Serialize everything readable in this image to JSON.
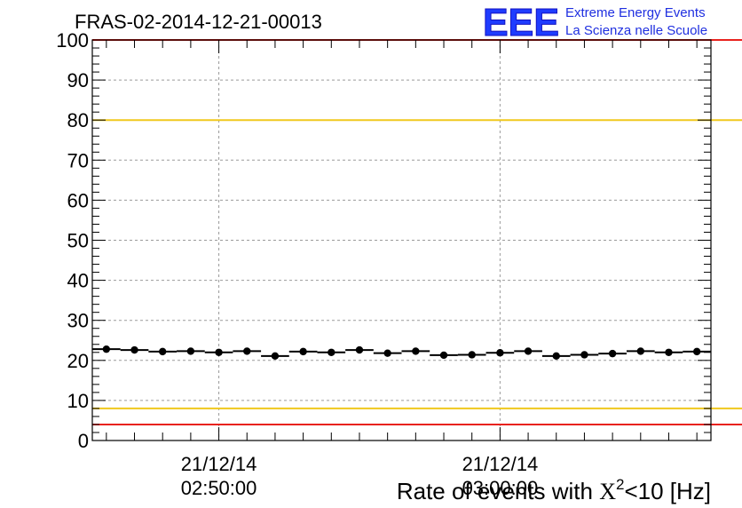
{
  "header": {
    "run_title": "FRAS-02-2014-12-21-00013",
    "logo_text": "EEE",
    "logo_line1": "Extreme Energy Events",
    "logo_line2": "La Scienza nelle Scuole"
  },
  "chart_data": {
    "type": "scatter",
    "title": "FRAS-02-2014-12-21-00013",
    "xlabel_prefix": "Rate of events with ",
    "xlabel_chi": "X",
    "xlabel_sup": "2",
    "xlabel_suffix": "<10 [Hz]",
    "ylim": [
      0,
      100
    ],
    "y_ticks": [
      "0",
      "10",
      "20",
      "30",
      "40",
      "50",
      "60",
      "70",
      "80",
      "90",
      "100"
    ],
    "x_tick_labels": [
      {
        "date": "21/12/14",
        "time": "02:50:00",
        "minute": 2.5
      },
      {
        "date": "21/12/14",
        "time": "03:00:00",
        "minute": 12.5
      }
    ],
    "x_range_minutes": [
      -2.0,
      20.0
    ],
    "bin_width_minutes": 1.0,
    "grid": true,
    "reference_lines": [
      {
        "value": 100,
        "color": "#e8221e"
      },
      {
        "value": 80,
        "color": "#f0c81e"
      },
      {
        "value": 8,
        "color": "#f0c81e"
      },
      {
        "value": 4,
        "color": "#e8221e"
      }
    ],
    "series": [
      {
        "color": "#000000",
        "x": [
          -1.5,
          -0.5,
          0.5,
          1.5,
          2.5,
          3.5,
          4.5,
          5.5,
          6.5,
          7.5,
          8.5,
          9.5,
          10.5,
          11.5,
          12.5,
          13.5,
          14.5,
          15.5,
          16.5,
          17.5,
          18.5,
          19.5
        ],
        "values": [
          22.8,
          22.6,
          22.2,
          22.3,
          22.0,
          22.3,
          21.1,
          22.2,
          22.0,
          22.6,
          21.8,
          22.3,
          21.3,
          21.4,
          21.9,
          22.3,
          21.1,
          21.4,
          21.7,
          22.3,
          22.0,
          22.2
        ]
      }
    ]
  }
}
